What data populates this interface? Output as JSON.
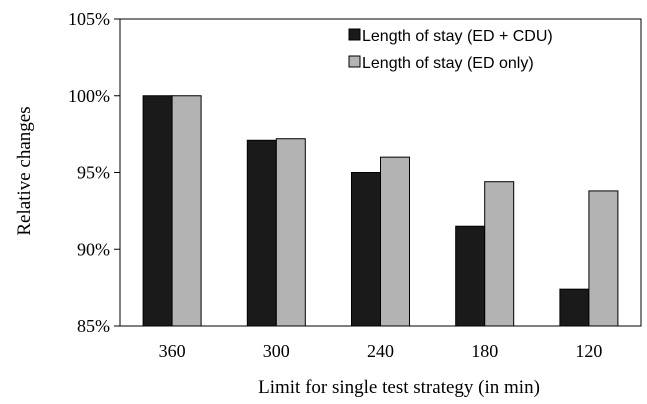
{
  "chart_data": {
    "type": "bar",
    "xlabel": "Limit for single test strategy (in min)",
    "ylabel": "Relative changes",
    "categories": [
      "360",
      "300",
      "240",
      "180",
      "120"
    ],
    "ylim": [
      85,
      105
    ],
    "yticks": [
      85,
      90,
      95,
      100,
      105
    ],
    "ytick_labels": [
      "85%",
      "90%",
      "95%",
      "100%",
      "105%"
    ],
    "grid": false,
    "legend_position": "top-right",
    "series": [
      {
        "name": "Length of stay (ED + CDU)",
        "color": "#1a1a1a",
        "values": [
          100.0,
          97.1,
          95.0,
          91.5,
          87.4
        ]
      },
      {
        "name": "Length of stay (ED only)",
        "color": "#b3b3b3",
        "values": [
          100.0,
          97.2,
          96.0,
          94.4,
          93.8
        ]
      }
    ]
  }
}
